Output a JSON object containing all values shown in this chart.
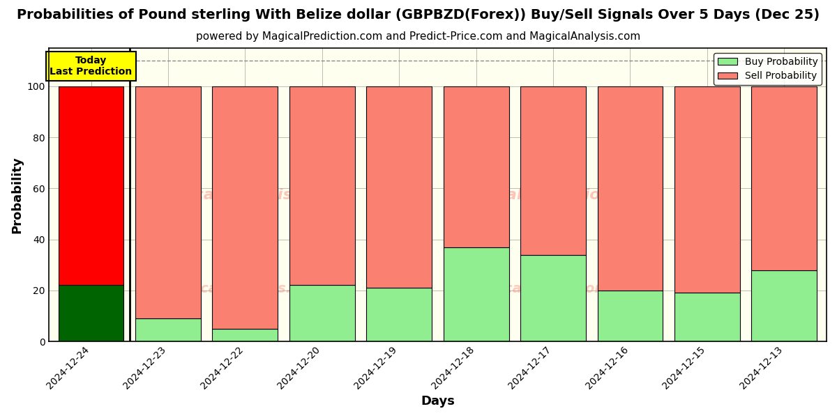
{
  "title": "Probabilities of Pound sterling With Belize dollar (GBPBZD(Forex)) Buy/Sell Signals Over 5 Days (Dec 25)",
  "subtitle": "powered by MagicalPrediction.com and Predict-Price.com and MagicalAnalysis.com",
  "xlabel": "Days",
  "ylabel": "Probability",
  "dates": [
    "2024-12-24",
    "2024-12-23",
    "2024-12-22",
    "2024-12-20",
    "2024-12-19",
    "2024-12-18",
    "2024-12-17",
    "2024-12-16",
    "2024-12-15",
    "2024-12-13"
  ],
  "buy_values": [
    22,
    9,
    5,
    22,
    21,
    37,
    34,
    20,
    19,
    28
  ],
  "sell_values": [
    78,
    91,
    95,
    78,
    79,
    63,
    66,
    80,
    81,
    72
  ],
  "today_buy_color": "#006400",
  "today_sell_color": "#ff0000",
  "normal_buy_color": "#90EE90",
  "normal_sell_color": "#FA8072",
  "today_label_bg": "#ffff00",
  "today_label_text": "Today\nLast Prediction",
  "legend_buy_label": "Buy Probability",
  "legend_sell_label": "Sell Probability",
  "ylim": [
    0,
    115
  ],
  "yticks": [
    0,
    20,
    40,
    60,
    80,
    100
  ],
  "bar_width": 0.85,
  "title_fontsize": 14,
  "subtitle_fontsize": 11,
  "axis_label_fontsize": 13,
  "tick_fontsize": 10,
  "legend_fontsize": 10,
  "plot_bg_color": "#fffff0",
  "fig_bg_color": "#ffffff"
}
